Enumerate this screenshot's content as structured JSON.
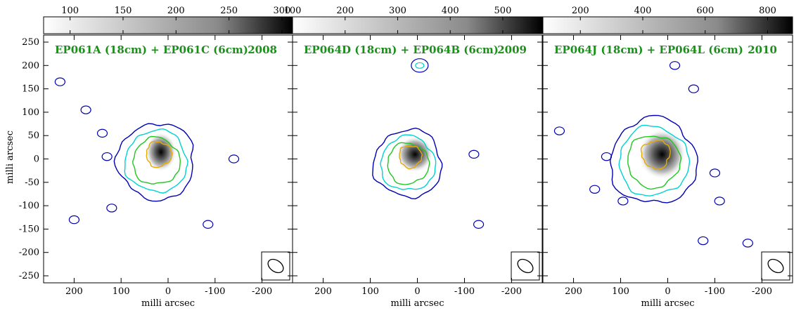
{
  "panels": [
    {
      "id": "panel-2008",
      "title": "EP061A (18cm) + EP061C (6cm)",
      "year": "2008",
      "colorbar_ticks": [
        100,
        150,
        200,
        250,
        300
      ],
      "colorbar_range": [
        75,
        310
      ],
      "contour_scale": 1.0
    },
    {
      "id": "panel-2009",
      "title": "EP064D (18cm) + EP064B (6cm)",
      "year": "2009",
      "colorbar_ticks": [
        100,
        200,
        300,
        400,
        500
      ],
      "colorbar_range": [
        100,
        575
      ],
      "contour_scale": 0.88
    },
    {
      "id": "panel-2010",
      "title": "EP064J (18cm) + EP064L (6cm)",
      "year": "2010",
      "colorbar_ticks": [
        200,
        400,
        600,
        800
      ],
      "colorbar_range": [
        80,
        880
      ],
      "contour_scale": 1.12
    }
  ],
  "axes": {
    "x_ticks": [
      200,
      100,
      0,
      -100,
      -200
    ],
    "y_ticks": [
      250,
      200,
      150,
      100,
      50,
      0,
      -50,
      -100,
      -150,
      -200,
      -250
    ],
    "x_range": [
      265,
      -265
    ],
    "y_range": [
      -265,
      265
    ],
    "xlabel": "milli arcsec",
    "ylabel": "milli arcsec"
  },
  "colors": {
    "contour_1": "#0000b4",
    "contour_2": "#00d2d2",
    "contour_3": "#1ec81e",
    "contour_4": "#e6aa00",
    "title": "#1a8f1a"
  }
}
